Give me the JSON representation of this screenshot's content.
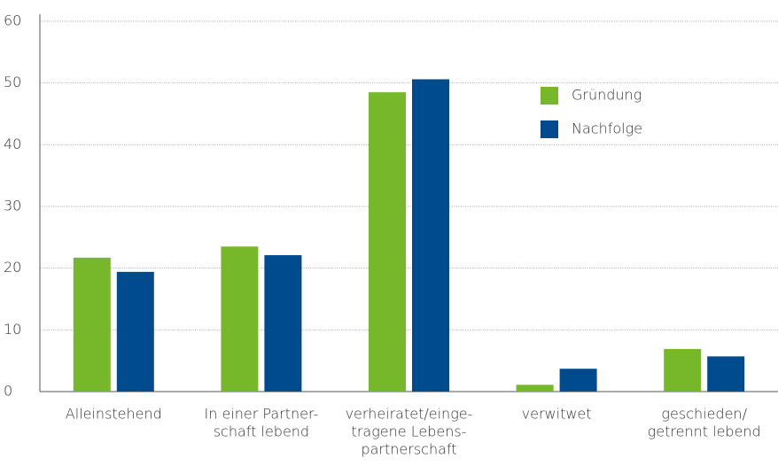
{
  "chart_data": {
    "type": "bar",
    "categories": [
      [
        "Alleinstehend"
      ],
      [
        "In einer Partner-",
        "schaft lebend"
      ],
      [
        "verheiratet/einge-",
        "tragene Lebens-",
        "partnerschaft"
      ],
      [
        "verwitwet"
      ],
      [
        "geschieden/",
        "getrennt lebend"
      ]
    ],
    "series": [
      {
        "name": "Gründung",
        "color": "#76b82a",
        "values": [
          21.7,
          23.5,
          48.5,
          1.1,
          6.9
        ]
      },
      {
        "name": "Nachfolge",
        "color": "#004b8d",
        "values": [
          19.4,
          22.1,
          50.6,
          3.7,
          5.7
        ]
      }
    ],
    "ylim": [
      0,
      60
    ],
    "yticks": [
      0,
      10,
      20,
      30,
      40,
      50,
      60
    ],
    "grid": true,
    "legend": "upper right"
  }
}
